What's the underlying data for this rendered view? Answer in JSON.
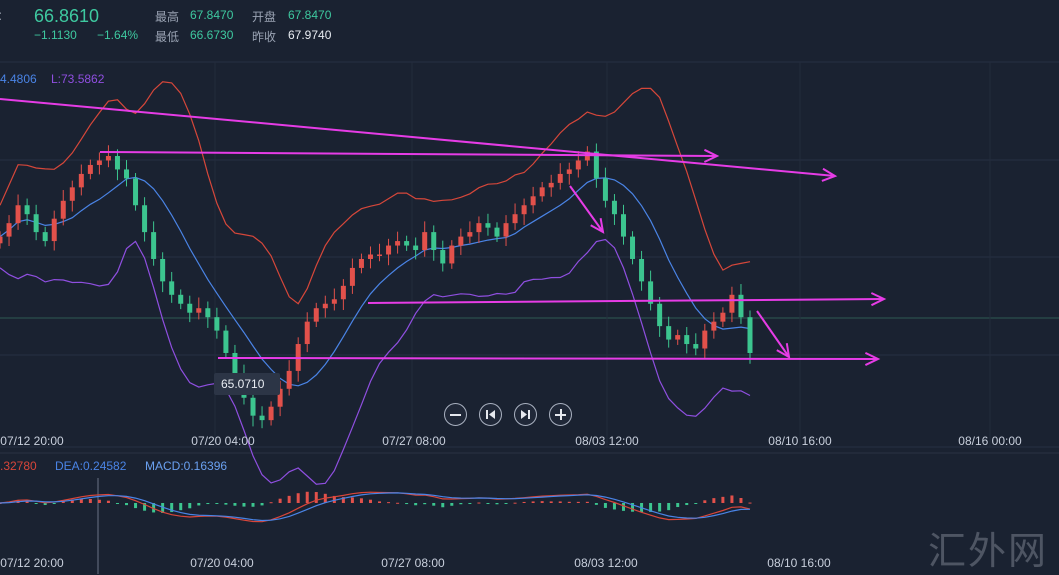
{
  "quote": {
    "price": "66.8610",
    "change": "−1.1130",
    "change_pct": "−1.64%",
    "high_label": "最高",
    "high": "67.8470",
    "open_label": "开盘",
    "open": "67.8470",
    "low_label": "最低",
    "low": "66.6730",
    "prev_close_label": "昨收",
    "prev_close": "67.9740"
  },
  "indicators": {
    "boll_upper": "4.4806",
    "boll_lower": "L:73.5862",
    "macd_dif": ".32780",
    "macd_dea": "DEA:0.24582",
    "macd_value": "MACD:0.16396"
  },
  "low_marker": "65.0710",
  "watermark": "汇外网",
  "colors": {
    "background": "#1a2231",
    "up": "#e2514b",
    "down": "#3cc58f",
    "price_green": "#3ec9a0",
    "boll_upper": "#d6473a",
    "boll_mid": "#4a84e6",
    "boll_lower": "#8f4fe0",
    "annotation": "#e63ce6",
    "dea": "#4a84e6",
    "dif": "#d8463a"
  },
  "controls": [
    "zoom-out",
    "step-back",
    "step-forward",
    "zoom-in"
  ],
  "chart_data": {
    "type": "candlestick",
    "x_tick_labels": [
      "07/12 20:00",
      "07/20 04:00",
      "07/27 08:00",
      "08/03 12:00",
      "08/10 16:00",
      "08/16 00:00"
    ],
    "y_range": [
      64.2,
      72.8
    ],
    "close_series": [
      68.9,
      69.2,
      69.6,
      69.4,
      69.0,
      68.8,
      69.3,
      69.7,
      70.0,
      70.3,
      70.5,
      70.6,
      70.7,
      70.4,
      70.2,
      69.6,
      69.0,
      68.4,
      67.9,
      67.6,
      67.4,
      67.2,
      67.3,
      67.1,
      66.8,
      66.3,
      65.8,
      65.3,
      64.9,
      64.8,
      65.1,
      65.5,
      65.9,
      66.5,
      67.0,
      67.3,
      67.4,
      67.5,
      67.8,
      68.2,
      68.4,
      68.5,
      68.5,
      68.7,
      68.8,
      68.7,
      68.6,
      69.0,
      68.6,
      68.3,
      68.7,
      68.9,
      69.0,
      69.2,
      69.1,
      68.9,
      69.2,
      69.4,
      69.6,
      69.8,
      70.0,
      70.1,
      70.3,
      70.4,
      70.6,
      70.8,
      70.2,
      69.7,
      69.4,
      68.9,
      68.4,
      67.9,
      67.4,
      66.9,
      66.6,
      66.7,
      66.5,
      66.4,
      66.8,
      67.0,
      67.2,
      67.6,
      67.1,
      66.3
    ]
  }
}
